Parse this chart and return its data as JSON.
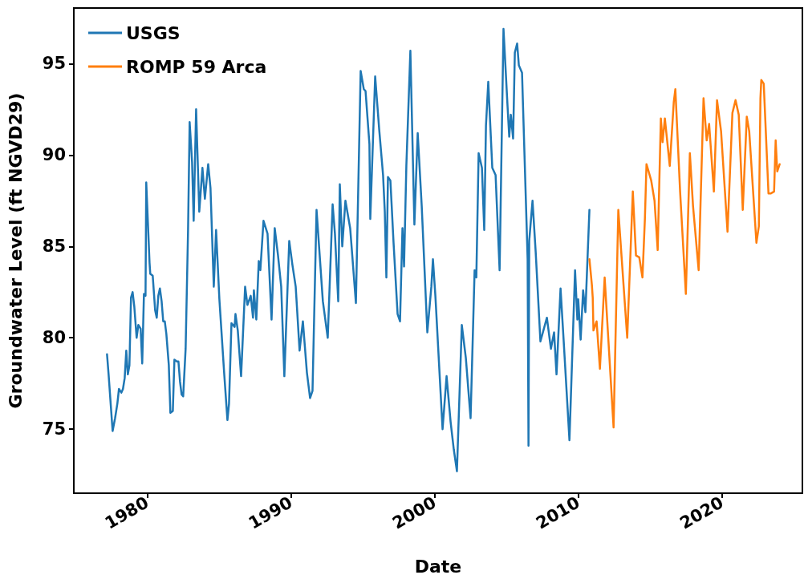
{
  "chart_data": {
    "type": "line",
    "xlabel": "Date",
    "ylabel": "Groundwater Level (ft NGVD29)",
    "xlim": [
      1974.9,
      2025.6
    ],
    "xticks": [
      1980,
      1990,
      2000,
      2010,
      2020
    ],
    "ylim": [
      71.5,
      98.04
    ],
    "yticks": [
      75,
      80,
      85,
      90,
      95
    ],
    "grid": false,
    "legend": "top left",
    "series": [
      {
        "name": "USGS",
        "color": "#1f77b4",
        "x": [
          1977.21,
          1977.32,
          1977.6,
          1977.77,
          1977.93,
          1978.04,
          1978.21,
          1978.32,
          1978.44,
          1978.55,
          1978.66,
          1978.77,
          1978.88,
          1978.99,
          1979.11,
          1979.27,
          1979.39,
          1979.55,
          1979.66,
          1979.78,
          1979.89,
          1979.94,
          1980.17,
          1980.22,
          1980.39,
          1980.56,
          1980.67,
          1980.78,
          1980.89,
          1981.01,
          1981.12,
          1981.23,
          1981.34,
          1981.51,
          1981.62,
          1981.79,
          1981.9,
          1982.07,
          1982.18,
          1982.29,
          1982.4,
          1982.51,
          1982.68,
          1982.85,
          1982.96,
          1983.13,
          1983.24,
          1983.41,
          1983.63,
          1983.85,
          1984.02,
          1984.25,
          1984.41,
          1984.64,
          1984.8,
          1985.03,
          1985.36,
          1985.59,
          1985.7,
          1985.87,
          1986.09,
          1986.15,
          1986.31,
          1986.54,
          1986.82,
          1986.98,
          1987.21,
          1987.37,
          1987.43,
          1987.6,
          1987.77,
          1987.88,
          1988.1,
          1988.38,
          1988.66,
          1988.88,
          1989.11,
          1989.33,
          1989.55,
          1989.89,
          1990.11,
          1990.34,
          1990.61,
          1990.84,
          1991.12,
          1991.34,
          1991.51,
          1991.79,
          1992.23,
          1992.57,
          1992.91,
          1993.07,
          1993.3,
          1993.41,
          1993.58,
          1993.8,
          1994.13,
          1994.53,
          1994.86,
          1995.08,
          1995.2,
          1995.47,
          1995.53,
          1995.87,
          1996.15,
          1996.42,
          1996.54,
          1996.65,
          1996.76,
          1996.93,
          1997.15,
          1997.43,
          1997.6,
          1997.77,
          1997.88,
          1998.04,
          1998.32,
          1998.6,
          1998.83,
          1999.11,
          1999.5,
          1999.78,
          1999.89,
          2000.06,
          2000.56,
          2000.84,
          2001.12,
          2001.34,
          2001.56,
          2001.9,
          2002.18,
          2002.51,
          2002.79,
          2002.91,
          2003.07,
          2003.3,
          2003.46,
          2003.58,
          2003.74,
          2004.02,
          2004.25,
          2004.53,
          2004.8,
          2005.08,
          2005.2,
          2005.31,
          2005.47,
          2005.59,
          2005.75,
          2005.87,
          2006.09,
          2006.48,
          2006.54,
          2006.59,
          2006.82,
          2007.04,
          2007.37,
          2007.82,
          2008.1,
          2008.32,
          2008.49,
          2008.77,
          2008.99,
          2009.39,
          2009.78,
          2009.94,
          2010.0,
          2010.17,
          2010.34,
          2010.5,
          2010.78
        ],
        "values": [
          79.1,
          78.0,
          74.9,
          75.6,
          76.4,
          77.2,
          77.0,
          77.2,
          77.8,
          79.3,
          78.0,
          78.5,
          82.2,
          82.5,
          81.7,
          80.0,
          80.7,
          80.5,
          78.6,
          82.4,
          82.3,
          88.5,
          84.1,
          83.5,
          83.4,
          81.5,
          81.1,
          82.3,
          82.7,
          82.0,
          80.9,
          80.9,
          80.2,
          78.5,
          75.9,
          76.0,
          78.8,
          78.7,
          78.7,
          77.6,
          76.9,
          76.8,
          79.4,
          85.9,
          91.8,
          89.6,
          86.4,
          92.5,
          86.9,
          89.3,
          87.6,
          89.5,
          88.2,
          82.8,
          85.9,
          82.1,
          78.1,
          75.5,
          76.4,
          80.8,
          80.6,
          81.3,
          80.4,
          77.9,
          82.8,
          81.8,
          82.3,
          81.1,
          82.6,
          81.0,
          84.2,
          83.7,
          86.4,
          85.7,
          81.0,
          86.0,
          84.5,
          82.8,
          77.9,
          85.3,
          84.0,
          82.8,
          79.3,
          80.9,
          78.1,
          76.7,
          77.1,
          87.0,
          82.0,
          80.0,
          87.3,
          85.7,
          82.0,
          88.4,
          85.0,
          87.5,
          86.0,
          81.9,
          94.6,
          93.6,
          93.5,
          90.6,
          86.5,
          94.3,
          91.4,
          88.9,
          86.9,
          83.3,
          88.8,
          88.6,
          85.2,
          81.3,
          80.9,
          86.0,
          83.9,
          89.4,
          95.7,
          86.2,
          91.2,
          87.2,
          80.3,
          82.8,
          84.3,
          82.3,
          75.0,
          77.9,
          75.4,
          73.9,
          72.7,
          80.7,
          78.9,
          75.6,
          83.7,
          83.3,
          90.1,
          89.3,
          85.9,
          91.6,
          94.0,
          89.3,
          88.9,
          83.7,
          96.9,
          92.7,
          91.0,
          92.2,
          90.9,
          95.6,
          96.1,
          94.9,
          94.5,
          84.3,
          74.1,
          85.3,
          87.5,
          84.7,
          79.8,
          81.1,
          79.4,
          80.3,
          78.0,
          82.7,
          79.8,
          74.4,
          83.7,
          81.0,
          82.1,
          79.9,
          82.6,
          81.4,
          87.0
        ]
      },
      {
        "name": "ROMP 59 Arca",
        "color": "#ff7f0e",
        "x": [
          2010.78,
          2010.95,
          2011.01,
          2011.06,
          2011.28,
          2011.51,
          2011.84,
          2012.46,
          2012.79,
          2013.02,
          2013.41,
          2013.8,
          2014.02,
          2014.25,
          2014.47,
          2014.64,
          2014.75,
          2015.08,
          2015.31,
          2015.53,
          2015.75,
          2015.87,
          2016.03,
          2016.37,
          2016.65,
          2016.76,
          2017.09,
          2017.49,
          2017.77,
          2017.99,
          2018.38,
          2018.72,
          2018.94,
          2019.11,
          2019.44,
          2019.66,
          2019.94,
          2020.39,
          2020.73,
          2020.95,
          2021.17,
          2021.45,
          2021.73,
          2021.9,
          2022.4,
          2022.57,
          2022.68,
          2022.74,
          2022.91,
          2023.24,
          2023.41,
          2023.63,
          2023.74,
          2023.85,
          2024.02
        ],
        "values": [
          84.3,
          82.9,
          82.2,
          80.4,
          80.9,
          78.3,
          83.3,
          75.1,
          87.0,
          84.4,
          80.0,
          88.0,
          84.5,
          84.4,
          83.3,
          86.5,
          89.5,
          88.6,
          87.5,
          84.8,
          92.0,
          90.7,
          92.0,
          89.4,
          92.9,
          93.6,
          88.0,
          82.4,
          90.1,
          87.2,
          83.7,
          93.1,
          90.8,
          91.7,
          88.0,
          93.0,
          91.3,
          85.8,
          92.3,
          93.0,
          92.2,
          87.0,
          92.1,
          91.3,
          85.2,
          86.1,
          93.1,
          94.1,
          93.9,
          87.9,
          87.9,
          88.0,
          90.8,
          89.1,
          89.5
        ]
      }
    ]
  }
}
